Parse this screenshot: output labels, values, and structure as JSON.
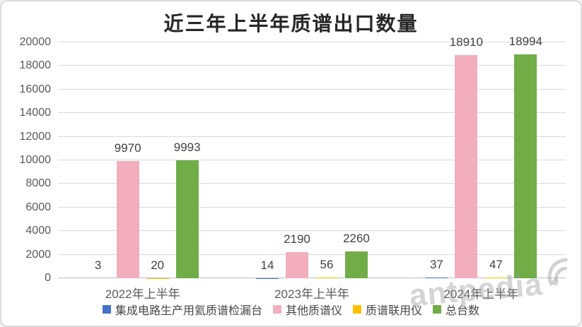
{
  "chart_data": {
    "type": "bar",
    "title": "近三年上半年质谱出口数量",
    "categories": [
      "2022年上半年",
      "2023年上半年",
      "2024年上半年"
    ],
    "series": [
      {
        "name": "集成电路生产用氦质谱检漏台",
        "color": "#4472C4",
        "values": [
          3,
          14,
          37
        ]
      },
      {
        "name": "其他质谱仪",
        "color": "#F2AEBD",
        "values": [
          9970,
          2190,
          18910
        ]
      },
      {
        "name": "质谱联用仪",
        "color": "#FFC000",
        "values": [
          20,
          56,
          47
        ]
      },
      {
        "name": "总台数",
        "color": "#70AD47",
        "values": [
          9993,
          2260,
          18994
        ]
      }
    ],
    "ylim": [
      0,
      20000
    ],
    "ytick_step": 2000,
    "yticks": [
      "0",
      "2000",
      "4000",
      "6000",
      "8000",
      "10000",
      "12000",
      "14000",
      "16000",
      "18000",
      "20000"
    ],
    "grid": true,
    "legend_position": "bottom",
    "data_labels": true,
    "gridline_color": "#D9D9D9",
    "axis_line_color": "#BFBFBF",
    "axis_text_color": "#595959",
    "label_text_color": "#404040"
  },
  "watermark": {
    "text": "antpedia"
  }
}
